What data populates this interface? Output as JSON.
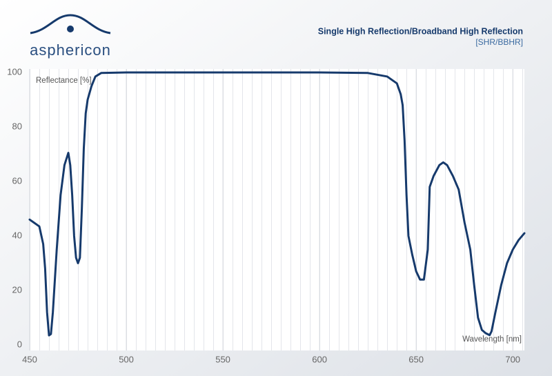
{
  "brand": "asphericon",
  "chart_data": {
    "type": "line",
    "title": "Single High Reflection/Broadband High Reflection",
    "subtitle": "[SHR/BBHR]",
    "y_label": "Reflectance [%]",
    "x_label": "Wavelength [nm]",
    "xlim": [
      450,
      706
    ],
    "xticks": [
      450,
      500,
      550,
      600,
      650,
      700
    ],
    "ylim": [
      0,
      100
    ],
    "yticks": [
      0,
      20,
      40,
      60,
      80,
      100
    ],
    "grid": true,
    "x": [
      450,
      452,
      455,
      457,
      458,
      459,
      460,
      461,
      462,
      464,
      466,
      468,
      470,
      471,
      472,
      473,
      474,
      475,
      476,
      477,
      478,
      479,
      480,
      482,
      484,
      487,
      500,
      550,
      600,
      625,
      635,
      640,
      642,
      643,
      644,
      645,
      646,
      648,
      650,
      652,
      654,
      656,
      657,
      659,
      662,
      664,
      666,
      669,
      672,
      675,
      678,
      680,
      682,
      684,
      686,
      688,
      689,
      691,
      694,
      697,
      700,
      703,
      706
    ],
    "series": [
      {
        "name": "Reflectance",
        "color": "#163a6c",
        "values": [
          46,
          45,
          43.5,
          37,
          28,
          12,
          3.5,
          4,
          12,
          35,
          55,
          66,
          70.5,
          66,
          55,
          40,
          32,
          30,
          32,
          50,
          72,
          85,
          90,
          95,
          98.5,
          99.8,
          100,
          100,
          100,
          99.8,
          98.5,
          96,
          92,
          88,
          75,
          55,
          40,
          33,
          27,
          24,
          24,
          35,
          58,
          62,
          66,
          67,
          66,
          62,
          57,
          45,
          35,
          22,
          10,
          5.5,
          4.3,
          3.6,
          5,
          12,
          22,
          30,
          35,
          38.5,
          41
        ]
      }
    ]
  }
}
